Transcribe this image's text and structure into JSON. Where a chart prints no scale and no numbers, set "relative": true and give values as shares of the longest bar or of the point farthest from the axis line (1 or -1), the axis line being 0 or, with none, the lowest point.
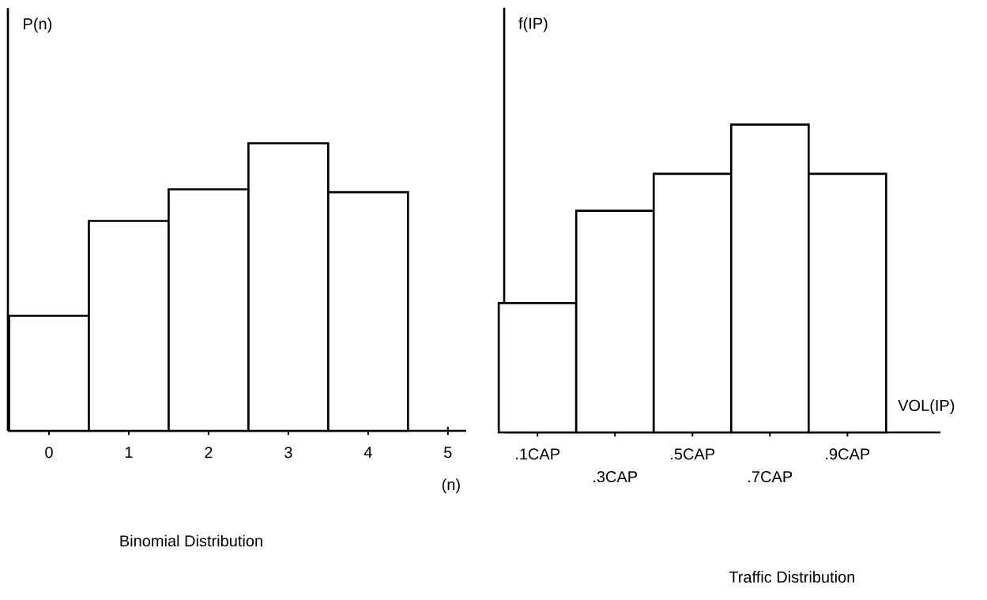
{
  "chart_data": [
    {
      "type": "bar",
      "title": "Binomial Distribution",
      "xlabel": "(n)",
      "ylabel": "P(n)",
      "categories": [
        "0",
        "1",
        "2",
        "3",
        "4",
        "5"
      ],
      "values": [
        0.4,
        0.73,
        0.84,
        1,
        0.83,
        null
      ],
      "relative": true,
      "color": "#000000"
    },
    {
      "type": "bar",
      "title": "Traffic Distribution",
      "xlabel": "VOL(IP)",
      "ylabel": "f(IP)",
      "categories": [
        ".1CAP",
        ".3CAP",
        ".5CAP",
        ".7CAP",
        ".9CAP"
      ],
      "values": [
        0.42,
        0.72,
        0.84,
        1,
        0.84
      ],
      "relative": true,
      "color": "#000000"
    }
  ]
}
